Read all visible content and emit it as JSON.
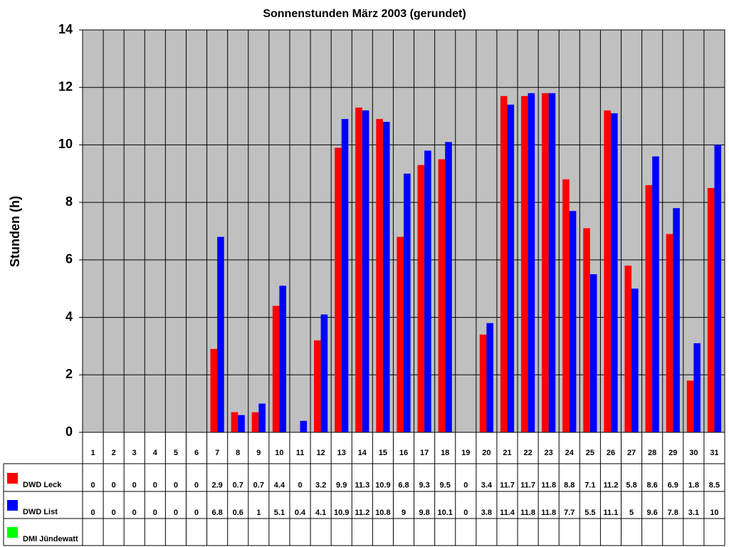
{
  "chart_data": {
    "type": "bar",
    "title": "Sonnenstunden März 2003 (gerundet)",
    "y_label": "Stunden (h)",
    "categories": [
      "1",
      "2",
      "3",
      "4",
      "5",
      "6",
      "7",
      "8",
      "9",
      "10",
      "11",
      "12",
      "13",
      "14",
      "15",
      "16",
      "17",
      "18",
      "19",
      "20",
      "21",
      "22",
      "23",
      "24",
      "25",
      "26",
      "27",
      "28",
      "29",
      "30",
      "31"
    ],
    "series": [
      {
        "name": "DWD Leck",
        "color": "#ff0000",
        "values": [
          0,
          0,
          0,
          0,
          0,
          0,
          2.9,
          0.7,
          0.7,
          4.4,
          0,
          3.2,
          9.9,
          11.3,
          10.9,
          6.8,
          9.3,
          9.5,
          0,
          3.4,
          11.7,
          11.7,
          11.8,
          8.8,
          7.1,
          11.2,
          5.8,
          8.6,
          6.9,
          1.8,
          8.5
        ]
      },
      {
        "name": "DWD List",
        "color": "#0000ff",
        "values": [
          0,
          0,
          0,
          0,
          0,
          0,
          6.8,
          0.6,
          1,
          5.1,
          0.4,
          4.1,
          10.9,
          11.2,
          10.8,
          9,
          9.8,
          10.1,
          0,
          3.8,
          11.4,
          11.8,
          11.8,
          7.7,
          5.5,
          11.1,
          5,
          9.6,
          7.8,
          3.1,
          10
        ]
      },
      {
        "name": "DMI Jündewatt",
        "color": "#00ff00",
        "values": [
          null,
          null,
          null,
          null,
          null,
          null,
          null,
          null,
          null,
          null,
          null,
          null,
          null,
          null,
          null,
          null,
          null,
          null,
          null,
          null,
          null,
          null,
          null,
          null,
          null,
          null,
          null,
          null,
          null,
          null,
          null
        ]
      }
    ],
    "ylim": [
      0,
      14
    ],
    "yticks": [
      0,
      2,
      4,
      6,
      8,
      10,
      12,
      14
    ],
    "grid": true,
    "plot_background": "#c0c0c0"
  }
}
